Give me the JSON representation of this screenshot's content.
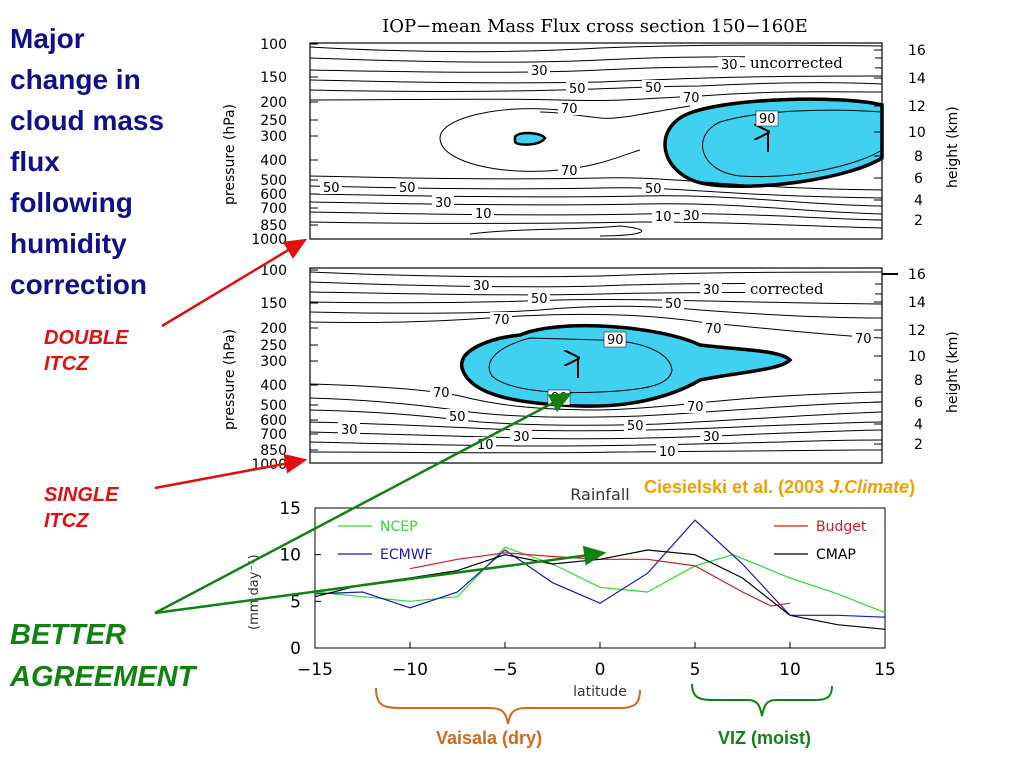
{
  "slide": {
    "headline": [
      "Major",
      "change in",
      "cloud mass",
      "flux",
      "following",
      "humidity",
      "correction"
    ],
    "double_itcz": [
      "DOUBLE",
      "ITCZ"
    ],
    "single_itcz": [
      "SINGLE",
      "ITCZ"
    ],
    "better_agreement": [
      "BETTER",
      "AGREEMENT"
    ],
    "citation_prefix": "Ciesielski et al. (2003 ",
    "citation_journal": "J.Climate",
    "citation_suffix": ")",
    "vaisala_label": "Vaisala (dry)",
    "viz_label": "VIZ (moist)",
    "colors": {
      "headline": "#10108a",
      "red": "#e01010",
      "green": "#118211",
      "orange": "#f0a000",
      "vaisala_brace": "#d2691e",
      "viz_brace": "#118211",
      "fill": "#40d0f0"
    }
  },
  "chart_data": [
    {
      "type": "contour",
      "title": "IOP−mean Mass Flux cross section 150−160E",
      "panel_label": "uncorrected",
      "ylabel": "pressure (hPa)",
      "ylabel_right": "height (km)",
      "pressure_ticks": [
        "100",
        "150",
        "200",
        "250",
        "300",
        "400",
        "500",
        "600",
        "700",
        "850",
        "1000"
      ],
      "height_ticks": [
        "16",
        "14",
        "12",
        "10",
        "8",
        "6",
        "4",
        "2"
      ],
      "contour_labels": [
        "30",
        "30",
        "50",
        "50",
        "70",
        "70",
        "70",
        "90",
        "50",
        "50",
        "50",
        "30",
        "10",
        "10",
        "30"
      ],
      "shaded_above": 90
    },
    {
      "type": "contour",
      "panel_label": "corrected",
      "ylabel": "pressure (hPa)",
      "ylabel_right": "height (km)",
      "pressure_ticks": [
        "100",
        "150",
        "200",
        "250",
        "300",
        "400",
        "500",
        "600",
        "700",
        "850",
        "1000"
      ],
      "height_ticks": [
        "16",
        "14",
        "12",
        "10",
        "8",
        "6",
        "4",
        "2"
      ],
      "contour_labels": [
        "30",
        "30",
        "50",
        "50",
        "70",
        "70",
        "70",
        "70",
        "90",
        "90",
        "50",
        "70",
        "30",
        "30",
        "30",
        "10",
        "10",
        "50"
      ],
      "shaded_above": 90
    },
    {
      "type": "line",
      "title": "Rainfall",
      "xlabel": "latitude",
      "ylabel": "(mm day⁻¹)",
      "xlim": [
        -15,
        15
      ],
      "ylim": [
        0,
        15
      ],
      "xticks": [
        "−15",
        "−10",
        "−5",
        "0",
        "5",
        "10",
        "15"
      ],
      "yticks": [
        "0",
        "5",
        "10",
        "15"
      ],
      "legend_left": [
        "NCEP",
        "ECMWF"
      ],
      "legend_right": [
        "Budget",
        "CMAP"
      ],
      "series": [
        {
          "name": "NCEP",
          "color": "#2edc2e",
          "x": [
            -15,
            -12.5,
            -10,
            -7.5,
            -5,
            -2.5,
            0,
            2.5,
            5,
            7,
            10,
            12.5,
            15
          ],
          "y": [
            6.0,
            5.5,
            5.0,
            5.5,
            10.8,
            9.0,
            6.5,
            6.0,
            8.8,
            10.0,
            7.5,
            5.8,
            3.8
          ]
        },
        {
          "name": "ECMWF",
          "color": "#1818c8",
          "x": [
            -15,
            -12.5,
            -10,
            -7.5,
            -5,
            -2.5,
            0,
            2.5,
            5,
            7.5,
            10,
            12.5,
            15
          ],
          "y": [
            5.8,
            6.0,
            4.3,
            6.0,
            10.5,
            7.0,
            4.8,
            8.0,
            13.7,
            9.0,
            3.5,
            3.5,
            3.3
          ]
        },
        {
          "name": "Budget",
          "color": "#d01c1c",
          "x": [
            -10,
            -7.5,
            -5,
            -2.5,
            0,
            2.5,
            5,
            7.5,
            9,
            10
          ],
          "y": [
            8.5,
            9.5,
            10.2,
            9.8,
            9.5,
            9.5,
            8.8,
            6.0,
            4.5,
            4.8
          ]
        },
        {
          "name": "CMAP",
          "color": "#000000",
          "x": [
            -15,
            -12.5,
            -10,
            -7.5,
            -5,
            -2.5,
            0,
            2.5,
            5,
            7.5,
            10,
            12.5,
            15
          ],
          "y": [
            5.5,
            6.8,
            7.5,
            8.3,
            10.0,
            9.0,
            9.5,
            10.5,
            10.0,
            7.5,
            3.5,
            2.5,
            2.0
          ]
        }
      ]
    }
  ]
}
